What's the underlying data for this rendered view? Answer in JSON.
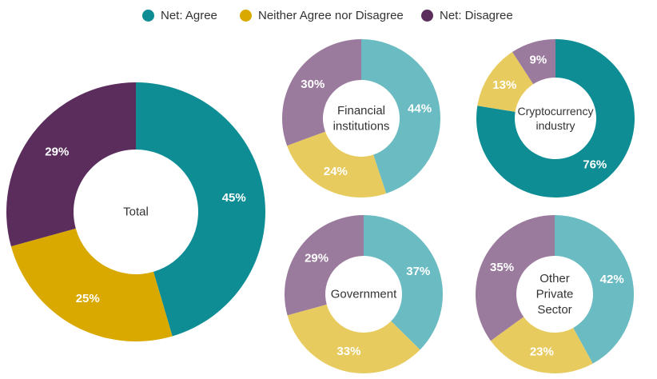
{
  "colors": {
    "agree_main": "#0e8d94",
    "neither_main": "#d9a900",
    "disagree_main": "#5a2d5c",
    "agree_light": "#6bbcc2",
    "neither_light": "#e8cb5e",
    "disagree_light": "#9b7b9d"
  },
  "legend": [
    {
      "label": "Net: Agree",
      "color": "#0e8d94"
    },
    {
      "label": "Neither Agree nor Disagree",
      "color": "#d9a900"
    },
    {
      "label": "Net: Disagree",
      "color": "#5a2d5c"
    }
  ],
  "chart_data": [
    {
      "type": "pie",
      "title": "Total",
      "categories": [
        "Net: Agree",
        "Neither Agree nor Disagree",
        "Net: Disagree"
      ],
      "values": [
        45,
        25,
        29
      ],
      "labels": [
        "45%",
        "25%",
        "29%"
      ]
    },
    {
      "type": "pie",
      "title": "Financial institutions",
      "categories": [
        "Net: Agree",
        "Neither Agree nor Disagree",
        "Net: Disagree"
      ],
      "values": [
        44,
        24,
        30
      ],
      "labels": [
        "44%",
        "24%",
        "30%"
      ]
    },
    {
      "type": "pie",
      "title": "Cryptocurrency industry",
      "categories": [
        "Net: Agree",
        "Neither Agree nor Disagree",
        "Net: Disagree"
      ],
      "values": [
        76,
        13,
        9
      ],
      "labels": [
        "76%",
        "13%",
        "9%"
      ]
    },
    {
      "type": "pie",
      "title": "Government",
      "categories": [
        "Net: Agree",
        "Neither Agree nor Disagree",
        "Net: Disagree"
      ],
      "values": [
        37,
        33,
        29
      ],
      "labels": [
        "37%",
        "33%",
        "29%"
      ]
    },
    {
      "type": "pie",
      "title": "Other Private Sector",
      "categories": [
        "Net: Agree",
        "Neither Agree nor Disagree",
        "Net: Disagree"
      ],
      "values": [
        42,
        23,
        35
      ],
      "labels": [
        "42%",
        "23%",
        "35%"
      ]
    }
  ]
}
